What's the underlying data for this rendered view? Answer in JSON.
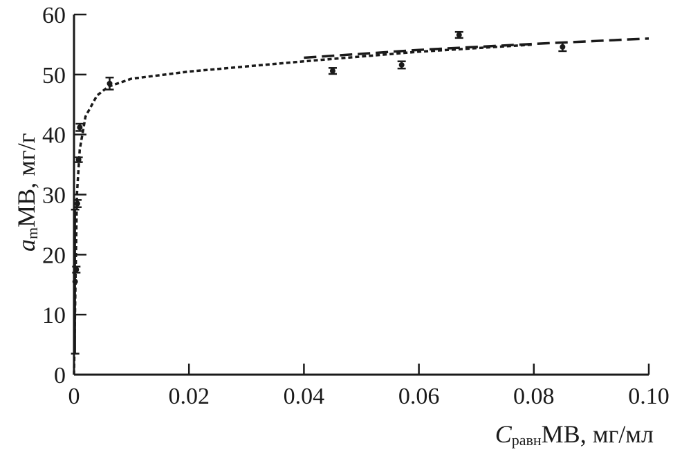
{
  "chart_data": {
    "type": "scatter",
    "x_axis": {
      "label_main": "C",
      "label_sub": "равн",
      "label_rest": "MB, мг/мл",
      "range": [
        0,
        0.1
      ],
      "ticks": [
        0,
        0.02,
        0.04,
        0.06,
        0.08,
        0.1
      ],
      "tick_labels": [
        "0",
        "0.02",
        "0.04",
        "0.06",
        "0.08",
        "0.10"
      ]
    },
    "y_axis": {
      "label_main": "a",
      "label_sub": "m",
      "label_rest": "MB, мг/г",
      "range": [
        0,
        60
      ],
      "ticks": [
        0,
        10,
        20,
        30,
        40,
        50,
        60
      ],
      "tick_labels": [
        "0",
        "10",
        "20",
        "30",
        "40",
        "50",
        "60"
      ]
    },
    "grid": false,
    "points": [
      {
        "x": 0.0002,
        "y": 15.5,
        "err": 12.0
      },
      {
        "x": 0.0004,
        "y": 17.5,
        "err": 0.5
      },
      {
        "x": 0.0006,
        "y": 28.5,
        "err": 0.6
      },
      {
        "x": 0.0008,
        "y": 35.8,
        "err": 0.4
      },
      {
        "x": 0.001,
        "y": 41.2,
        "err": 0.6
      },
      {
        "x": 0.0062,
        "y": 48.5,
        "err": 1.0
      },
      {
        "x": 0.045,
        "y": 50.6,
        "err": 0.5
      },
      {
        "x": 0.057,
        "y": 51.6,
        "err": 0.6
      },
      {
        "x": 0.067,
        "y": 56.6,
        "err": 0.5
      },
      {
        "x": 0.085,
        "y": 54.6,
        "err": 0.7
      }
    ],
    "fit_curve_dotted": [
      [
        0,
        0
      ],
      [
        0.0005,
        30
      ],
      [
        0.001,
        37.5
      ],
      [
        0.002,
        43
      ],
      [
        0.004,
        46.5
      ],
      [
        0.006,
        48
      ],
      [
        0.01,
        49.3
      ],
      [
        0.02,
        50.5
      ],
      [
        0.04,
        52.2
      ],
      [
        0.06,
        53.8
      ],
      [
        0.08,
        55
      ]
    ],
    "fit_curve_dashed": [
      [
        0.04,
        52.8
      ],
      [
        0.06,
        54.1
      ],
      [
        0.08,
        55.1
      ],
      [
        0.1,
        56
      ]
    ],
    "colors": {
      "ink": "#1a1a1a"
    }
  }
}
